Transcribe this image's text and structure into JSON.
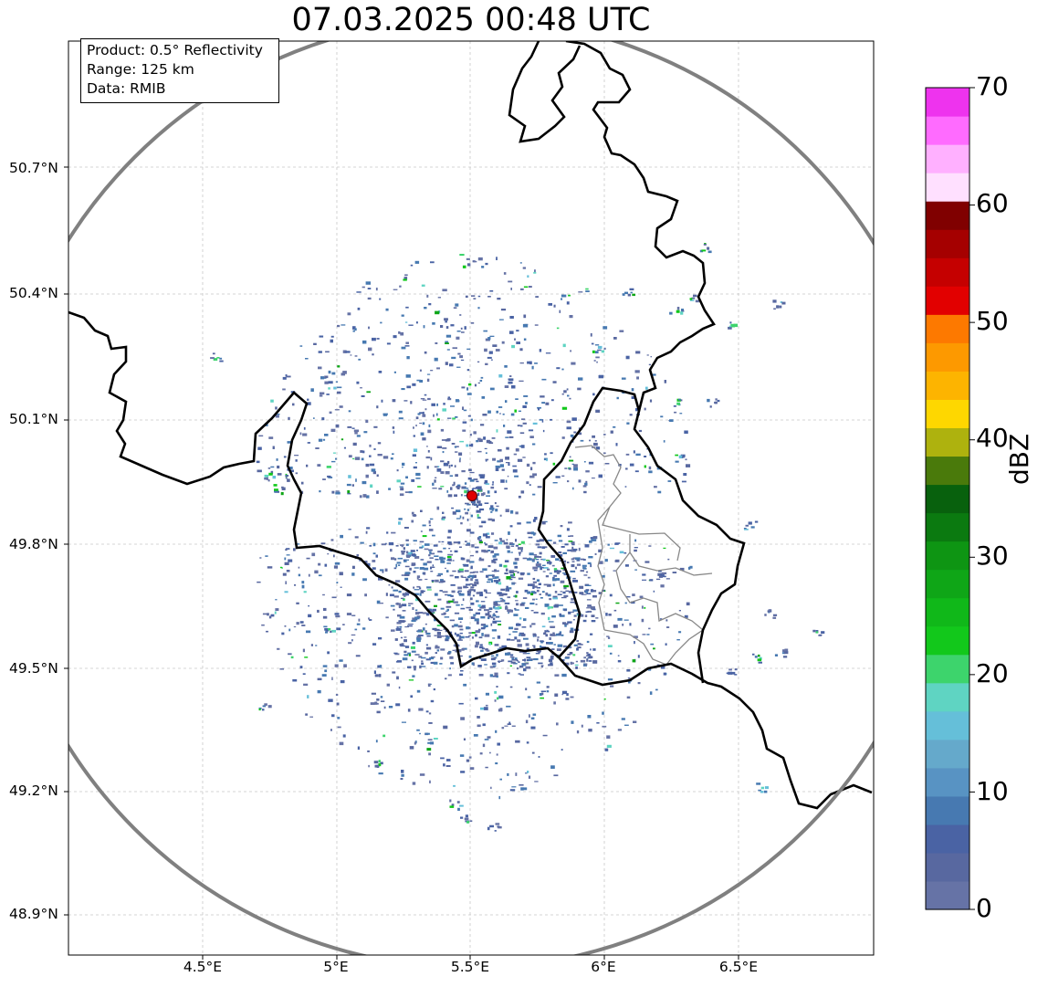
{
  "title": "07.03.2025 00:48 UTC",
  "info": {
    "product": "Product: 0.5° Reflectivity",
    "range": "Range: 125 km",
    "data_source": "Data: RMIB"
  },
  "lat_labels": [
    "50.7°N",
    "50.4°N",
    "50.1°N",
    "49.8°N",
    "49.5°N",
    "49.2°N",
    "48.9°N"
  ],
  "lon_labels": [
    "4.5°E",
    "5°E",
    "5.5°E",
    "6°E",
    "6.5°E"
  ],
  "colorbar": {
    "unit": "dBZ",
    "tick_labels": [
      "0",
      "10",
      "20",
      "30",
      "40",
      "50",
      "60",
      "70"
    ],
    "colors": [
      "#6673a6",
      "#5868a0",
      "#4a63a4",
      "#4779b1",
      "#5893c3",
      "#65a9cb",
      "#65bfd9",
      "#5fd4c2",
      "#3dd46c",
      "#12c81b",
      "#10b819",
      "#0fa617",
      "#0e9513",
      "#0b7a10",
      "#08610d",
      "#4a7a0b",
      "#aeb20e",
      "#fed700",
      "#fdb400",
      "#fd9900",
      "#fd7900",
      "#e20000",
      "#c50000",
      "#a50000",
      "#800000",
      "#ffe0ff",
      "#ffb0ff",
      "#ff6bff",
      "#ee33ee"
    ]
  },
  "map_colors": {
    "border": "#000000",
    "range_ring": "#808080",
    "subregions": "#888888",
    "gridline": "#c8c8c8",
    "radar_site": "#e00000"
  }
}
